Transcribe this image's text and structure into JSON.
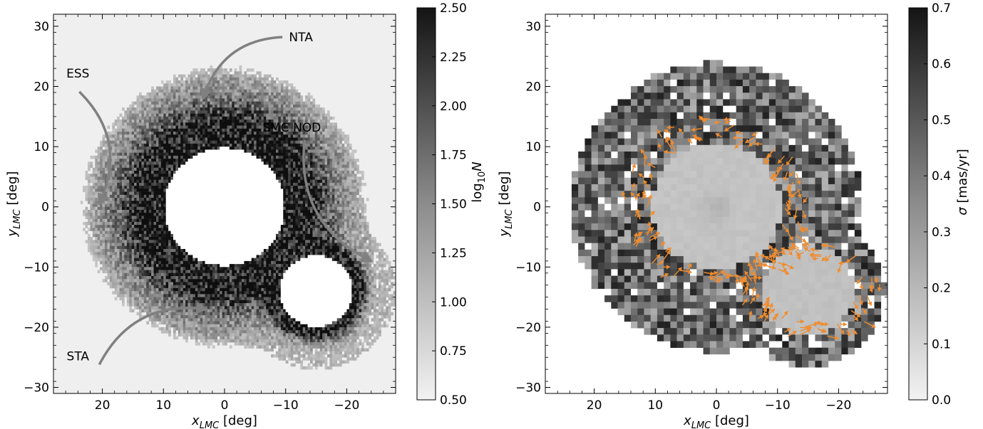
{
  "chart_data": [
    {
      "type": "heatmap",
      "panel": "left",
      "xlabel_main": "x",
      "xlabel_sub": "LMC",
      "xlabel_unit": " [deg]",
      "ylabel_main": "y",
      "ylabel_sub": "LMC",
      "ylabel_unit": " [deg]",
      "xlim": [
        28,
        -28
      ],
      "ylim": [
        -31,
        32
      ],
      "xticks": [
        20,
        10,
        0,
        -10,
        -20
      ],
      "xtick_labels": [
        "20",
        "10",
        "0",
        "−10",
        "−20"
      ],
      "yticks": [
        30,
        20,
        10,
        0,
        -10,
        -20,
        -30
      ],
      "ytick_labels": [
        "30",
        "20",
        "10",
        "0",
        "−10",
        "−20",
        "−30"
      ],
      "colorbar": {
        "label_main": "log",
        "label_sub": "10",
        "label_var": "N",
        "range": [
          0.5,
          2.5
        ],
        "ticks": [
          0.5,
          0.75,
          1.0,
          1.25,
          1.5,
          1.75,
          2.0,
          2.25,
          2.5
        ],
        "tick_labels": [
          "0.50",
          "0.75",
          "1.00",
          "1.25",
          "1.50",
          "1.75",
          "2.00",
          "2.25",
          "2.50"
        ],
        "colormap": "greys"
      },
      "masked_regions": [
        {
          "name": "LMC",
          "center": [
            0,
            0
          ],
          "radius": 9.8
        },
        {
          "name": "SMC",
          "center": [
            -15,
            -14
          ],
          "radius": 5.9
        }
      ],
      "annotations": [
        {
          "text": "NTA",
          "text_pos": [
            -12.5,
            27.5
          ],
          "arrow_to": [
            3.5,
            18
          ]
        },
        {
          "text": "ESS",
          "text_pos": [
            24,
            21.5
          ],
          "arrow_to": [
            20.5,
            0.5
          ]
        },
        {
          "text": "SMC NOD",
          "text_pos": [
            -11,
            12.5
          ],
          "arrow_to": [
            -24,
            -9
          ]
        },
        {
          "text": "STA",
          "text_pos": [
            24,
            -25.5
          ],
          "arrow_to": [
            3,
            -17
          ]
        }
      ]
    },
    {
      "type": "heatmap",
      "panel": "right",
      "xlabel_main": "x",
      "xlabel_sub": "LMC",
      "xlabel_unit": " [deg]",
      "ylabel_main": "y",
      "ylabel_sub": "LMC",
      "ylabel_unit": " [deg]",
      "xlim": [
        28,
        -28
      ],
      "ylim": [
        -31,
        32
      ],
      "xticks": [
        20,
        10,
        0,
        -10,
        -20
      ],
      "xtick_labels": [
        "20",
        "10",
        "0",
        "−10",
        "−20"
      ],
      "yticks": [
        30,
        20,
        10,
        0,
        -10,
        -20,
        -30
      ],
      "ytick_labels": [
        "30",
        "20",
        "10",
        "0",
        "−10",
        "−20",
        "−30"
      ],
      "colorbar": {
        "label_var": "σ",
        "label_unit": " [mas/yr]",
        "range": [
          0.0,
          0.7
        ],
        "ticks": [
          0.0,
          0.1,
          0.2,
          0.3,
          0.4,
          0.5,
          0.6,
          0.7
        ],
        "tick_labels": [
          "0.0",
          "0.1",
          "0.2",
          "0.3",
          "0.4",
          "0.5",
          "0.6",
          "0.7"
        ],
        "colormap": "greys"
      },
      "vector_overlay": {
        "color": "#f08c2e",
        "regions": [
          "ring around LMC",
          "ring around SMC"
        ]
      }
    }
  ],
  "colors": {
    "arrow_annotation": "#808080",
    "quiver": "#f08c2e",
    "background": "#efefef"
  }
}
